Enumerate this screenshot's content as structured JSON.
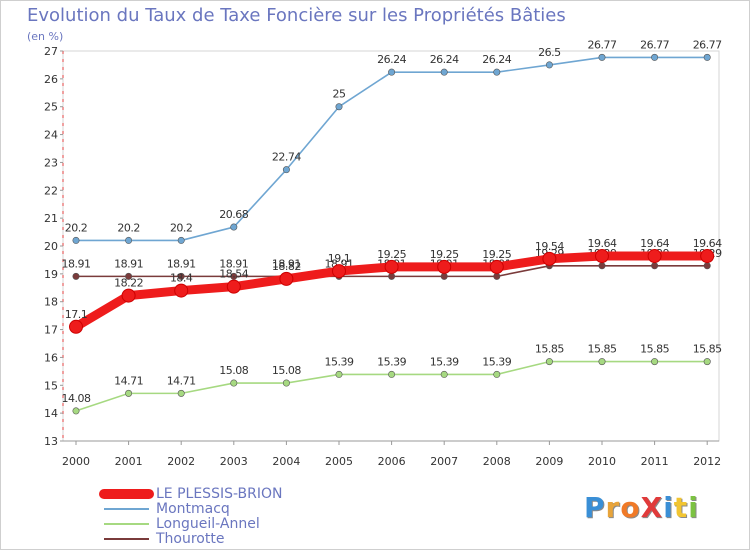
{
  "title": "Evolution du Taux de Taxe Foncière sur les Propriétés Bâties",
  "subtitle": "(en %)",
  "brand": {
    "text": "ProXiti",
    "colors": [
      "#3a8fd6",
      "#e8a43a",
      "#f07a28",
      "#e03b3b",
      "#3a8fd6",
      "#f2c531",
      "#7cc242"
    ]
  },
  "chart_data": {
    "type": "line",
    "title": "Evolution du Taux de Taxe Foncière sur les Propriétés Bâties",
    "ylabel": "(en %)",
    "xlabel": "",
    "x": [
      "2000",
      "2001",
      "2002",
      "2003",
      "2004",
      "2005",
      "2006",
      "2007",
      "2008",
      "2009",
      "2010",
      "2011",
      "2012"
    ],
    "ylim": [
      13,
      27
    ],
    "yticks": [
      "13",
      "14",
      "15",
      "16",
      "17",
      "18",
      "19",
      "20",
      "21",
      "22",
      "23",
      "24",
      "25",
      "26",
      "27"
    ],
    "grid": false,
    "legend": "bottom-left",
    "series": [
      {
        "name": "Montmacq",
        "color": "#6fa6d2",
        "values": [
          20.2,
          20.2,
          20.2,
          20.68,
          22.74,
          25,
          26.24,
          26.24,
          26.24,
          26.5,
          26.77,
          26.77,
          26.77
        ],
        "labels": [
          "20.2",
          "20.2",
          "20.2",
          "20.68",
          "22.74",
          "25",
          "26.24",
          "26.24",
          "26.24",
          "26.5",
          "26.77",
          "26.77",
          "26.77"
        ]
      },
      {
        "name": "Longueil-Annel",
        "color": "#a6d981",
        "values": [
          14.08,
          14.71,
          14.71,
          15.08,
          15.08,
          15.39,
          15.39,
          15.39,
          15.39,
          15.85,
          15.85,
          15.85,
          15.85
        ],
        "labels": [
          "14.08",
          "14.71",
          "14.71",
          "15.08",
          "15.08",
          "15.39",
          "15.39",
          "15.39",
          "15.39",
          "15.85",
          "15.85",
          "15.85",
          "15.85"
        ]
      },
      {
        "name": "Thourotte",
        "color": "#7a3b3b",
        "values": [
          18.91,
          18.91,
          18.91,
          18.91,
          18.91,
          18.91,
          18.91,
          18.91,
          18.91,
          19.29,
          19.29,
          19.29,
          19.29
        ],
        "labels": [
          "18.91",
          "18.91",
          "18.91",
          "18.91",
          "18.91",
          "18.91",
          "18.91",
          "18.91",
          "18.91",
          "19.29",
          "19.29",
          "19.29",
          "19.29"
        ]
      },
      {
        "name": "LE PLESSIS-BRION",
        "color": "#ee1c1c",
        "values": [
          17.1,
          18.22,
          18.4,
          18.54,
          18.82,
          19.1,
          19.25,
          19.25,
          19.25,
          19.54,
          19.64,
          19.64,
          19.64
        ],
        "labels": [
          "17.1",
          "18.22",
          "18.4",
          "18.54",
          "18.82",
          "19.1",
          "19.25",
          "19.25",
          "19.25",
          "19.54",
          "19.64",
          "19.64",
          "19.64"
        ]
      }
    ],
    "legend_entries": [
      {
        "name": "LE PLESSIS-BRION",
        "color": "#ee1c1c",
        "thickness": 10
      },
      {
        "name": "Montmacq",
        "color": "#6fa6d2",
        "thickness": 2
      },
      {
        "name": "Longueil-Annel",
        "color": "#a6d981",
        "thickness": 2
      },
      {
        "name": "Thourotte",
        "color": "#7a3b3b",
        "thickness": 2
      }
    ]
  }
}
